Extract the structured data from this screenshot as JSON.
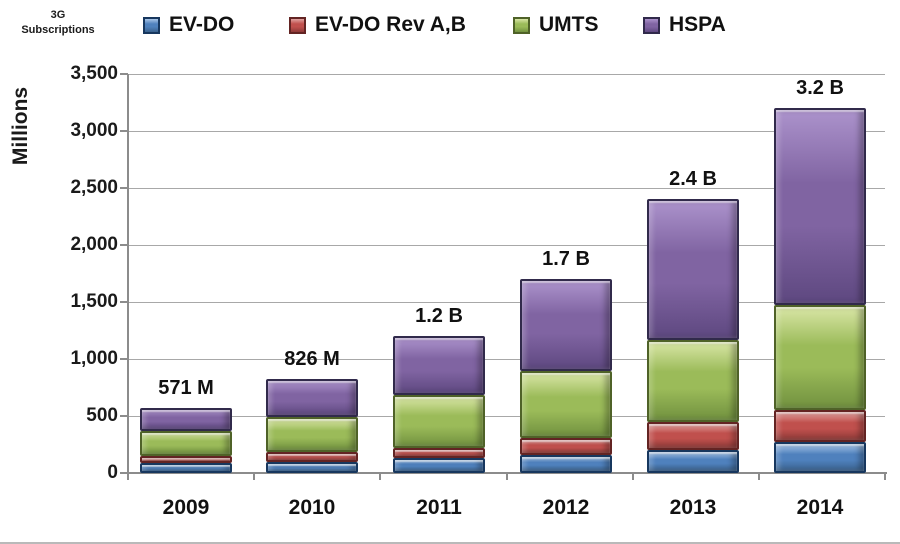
{
  "header": {
    "corner_label_line1": "3G",
    "corner_label_line2": "Subscriptions"
  },
  "chart_data": {
    "type": "bar",
    "stacked": true,
    "title": "3G Subscriptions",
    "ylabel": "Millions",
    "ylim": [
      0,
      3500
    ],
    "grid": true,
    "legend_position": "top",
    "categories": [
      "2009",
      "2010",
      "2011",
      "2012",
      "2013",
      "2014"
    ],
    "series": [
      {
        "name": "EV-DO",
        "values": [
          85,
          94,
          130,
          158,
          200,
          275
        ],
        "color": "#4F81BD",
        "light": "#A9C6E8",
        "dark": "#3A618C",
        "border": "#17375E"
      },
      {
        "name": "EV-DO Rev A,B",
        "values": [
          60,
          88,
          90,
          146,
          250,
          280
        ],
        "color": "#C0504D",
        "light": "#E0A3A1",
        "dark": "#8E3A38",
        "border": "#632423"
      },
      {
        "name": "UMTS",
        "values": [
          223,
          312,
          460,
          591,
          715,
          920
        ],
        "color": "#9BBB59",
        "light": "#D9E6A6",
        "dark": "#71913F",
        "border": "#4F6228"
      },
      {
        "name": "HSPA",
        "values": [
          203,
          332,
          520,
          805,
          1235,
          1725
        ],
        "color": "#8064A2",
        "light": "#AC93CC",
        "dark": "#5E4880",
        "border": "#312A4B"
      }
    ],
    "totals": [
      571,
      826,
      1200,
      1700,
      2400,
      3200
    ],
    "totals_labels": [
      "571 M",
      "826 M",
      "1.2 B",
      "1.7 B",
      "2.4 B",
      "3.2 B"
    ],
    "yticks": [
      {
        "value": 0,
        "label": "0"
      },
      {
        "value": 500,
        "label": "500"
      },
      {
        "value": 1000,
        "label": "1,000"
      },
      {
        "value": 1500,
        "label": "1,500"
      },
      {
        "value": 2000,
        "label": "2,000"
      },
      {
        "value": 2500,
        "label": "2,500"
      },
      {
        "value": 3000,
        "label": "3,000"
      },
      {
        "value": 3500,
        "label": "3,500"
      }
    ],
    "axis_color": "#8c8c8c",
    "gridline_color": "#a8a8a8"
  }
}
